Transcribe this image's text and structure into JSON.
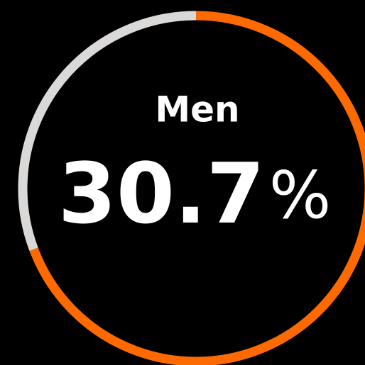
{
  "chart_data": {
    "type": "donut",
    "categories": [
      "Men"
    ],
    "values": [
      30.7
    ],
    "value_labels": [
      "30.7%"
    ],
    "color": "#d9d9d9",
    "track_color": "#ff6a00"
  }
}
